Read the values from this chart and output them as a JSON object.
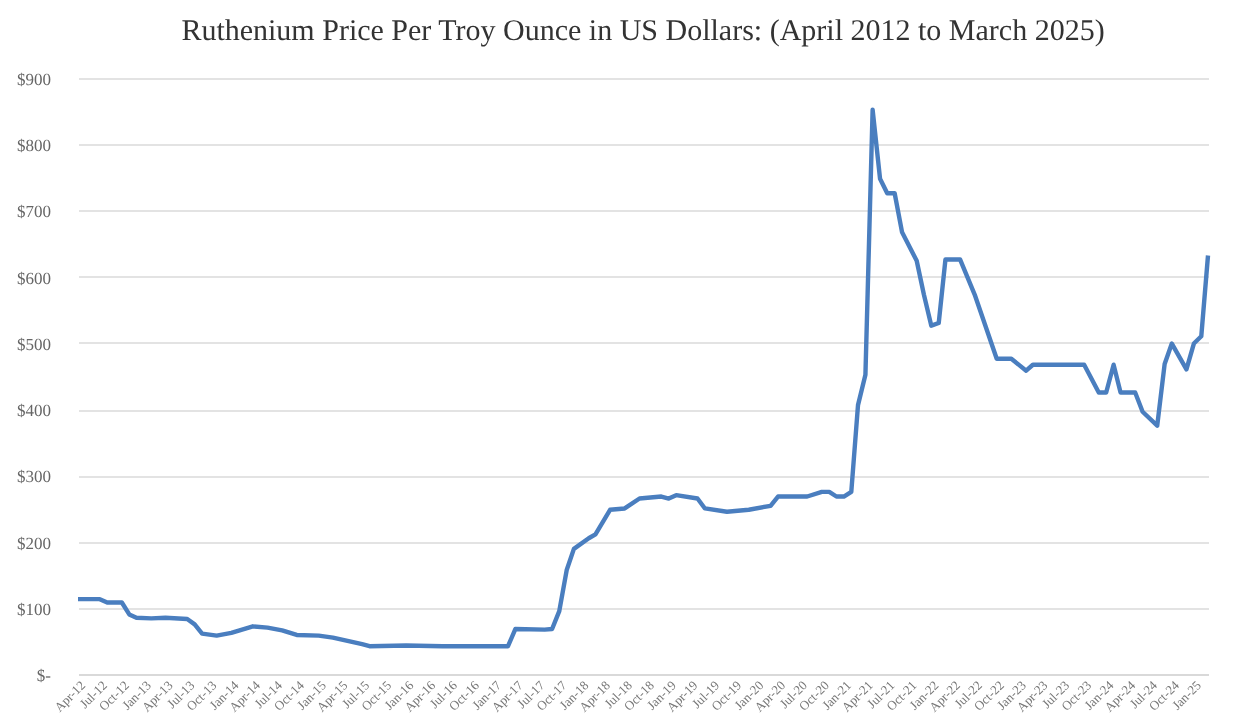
{
  "chart_data": {
    "type": "line",
    "title": "Ruthenium Price Per Troy Ounce in US Dollars: (April 2012 to March 2025)",
    "series": [
      {
        "color": "#4a7ebf",
        "x": [
          "2012-04",
          "2012-07",
          "2012-08",
          "2012-10",
          "2012-11",
          "2012-12",
          "2013-02",
          "2013-04",
          "2013-07",
          "2013-08",
          "2013-09",
          "2013-11",
          "2014-01",
          "2014-04",
          "2014-06",
          "2014-08",
          "2014-10",
          "2015-01",
          "2015-03",
          "2015-05",
          "2015-07",
          "2015-08",
          "2016-01",
          "2016-06",
          "2016-11",
          "2017-03",
          "2017-04",
          "2017-08",
          "2017-09",
          "2017-10",
          "2017-11",
          "2017-12",
          "2018-02",
          "2018-03",
          "2018-05",
          "2018-07",
          "2018-09",
          "2018-12",
          "2019-01",
          "2019-02",
          "2019-05",
          "2019-06",
          "2019-09",
          "2019-12",
          "2020-03",
          "2020-04",
          "2020-08",
          "2020-10",
          "2020-11",
          "2020-12",
          "2021-01",
          "2021-02",
          "2021-03",
          "2021-04",
          "2021-05",
          "2021-06",
          "2021-07",
          "2021-08",
          "2021-09",
          "2021-11",
          "2021-12",
          "2022-01",
          "2022-02",
          "2022-03",
          "2022-05",
          "2022-07",
          "2022-10",
          "2022-12",
          "2023-02",
          "2023-03",
          "2023-10",
          "2023-12",
          "2024-01",
          "2024-02",
          "2024-03",
          "2024-05",
          "2024-06",
          "2024-08",
          "2024-09",
          "2024-10",
          "2024-12",
          "2025-01",
          "2025-02",
          "2025-03"
        ],
        "values": [
          113,
          113,
          108,
          108,
          90,
          85,
          84,
          85,
          83,
          75,
          61,
          58,
          62,
          72,
          70,
          66,
          59,
          58,
          55,
          50,
          45,
          42,
          43,
          42,
          42,
          42,
          68,
          67,
          68,
          95,
          157,
          189,
          205,
          211,
          248,
          250,
          265,
          268,
          265,
          270,
          265,
          250,
          245,
          248,
          254,
          268,
          268,
          275,
          275,
          268,
          268,
          275,
          406,
          452,
          852,
          748,
          726,
          726,
          667,
          624,
          573,
          526,
          530,
          626,
          626,
          573,
          476,
          476,
          458,
          467,
          467,
          425,
          425,
          467,
          425,
          425,
          396,
          375,
          468,
          499,
          460,
          499,
          510,
          632
        ]
      }
    ],
    "xlim": [
      "2012-04",
      "2025-03"
    ],
    "xticks": [
      {
        "value": "2012-04",
        "label": "Apr-12"
      },
      {
        "value": "2012-07",
        "label": "Jul-12"
      },
      {
        "value": "2012-10",
        "label": "Oct-12"
      },
      {
        "value": "2013-01",
        "label": "Jan-13"
      },
      {
        "value": "2013-04",
        "label": "Apr-13"
      },
      {
        "value": "2013-07",
        "label": "Jul-13"
      },
      {
        "value": "2013-10",
        "label": "Oct-13"
      },
      {
        "value": "2014-01",
        "label": "Jan-14"
      },
      {
        "value": "2014-04",
        "label": "Apr-14"
      },
      {
        "value": "2014-07",
        "label": "Jul-14"
      },
      {
        "value": "2014-10",
        "label": "Oct-14"
      },
      {
        "value": "2015-01",
        "label": "Jan-15"
      },
      {
        "value": "2015-04",
        "label": "Apr-15"
      },
      {
        "value": "2015-07",
        "label": "Jul-15"
      },
      {
        "value": "2015-10",
        "label": "Oct-15"
      },
      {
        "value": "2016-01",
        "label": "Jan-16"
      },
      {
        "value": "2016-04",
        "label": "Apr-16"
      },
      {
        "value": "2016-07",
        "label": "Jul-16"
      },
      {
        "value": "2016-10",
        "label": "Oct-16"
      },
      {
        "value": "2017-01",
        "label": "Jan-17"
      },
      {
        "value": "2017-04",
        "label": "Apr-17"
      },
      {
        "value": "2017-07",
        "label": "Jul-17"
      },
      {
        "value": "2017-10",
        "label": "Oct-17"
      },
      {
        "value": "2018-01",
        "label": "Jan-18"
      },
      {
        "value": "2018-04",
        "label": "Apr-18"
      },
      {
        "value": "2018-07",
        "label": "Jul-18"
      },
      {
        "value": "2018-10",
        "label": "Oct-18"
      },
      {
        "value": "2019-01",
        "label": "Jan-19"
      },
      {
        "value": "2019-04",
        "label": "Apr-19"
      },
      {
        "value": "2019-07",
        "label": "Jul-19"
      },
      {
        "value": "2019-10",
        "label": "Oct-19"
      },
      {
        "value": "2020-01",
        "label": "Jan-20"
      },
      {
        "value": "2020-04",
        "label": "Apr-20"
      },
      {
        "value": "2020-07",
        "label": "Jul-20"
      },
      {
        "value": "2020-10",
        "label": "Oct-20"
      },
      {
        "value": "2021-01",
        "label": "Jan-21"
      },
      {
        "value": "2021-04",
        "label": "Apr-21"
      },
      {
        "value": "2021-07",
        "label": "Jul-21"
      },
      {
        "value": "2021-10",
        "label": "Oct-21"
      },
      {
        "value": "2022-01",
        "label": "Jan-22"
      },
      {
        "value": "2022-04",
        "label": "Apr-22"
      },
      {
        "value": "2022-07",
        "label": "Jul-22"
      },
      {
        "value": "2022-10",
        "label": "Oct-22"
      },
      {
        "value": "2023-01",
        "label": "Jan-23"
      },
      {
        "value": "2023-04",
        "label": "Apr-23"
      },
      {
        "value": "2023-07",
        "label": "Jul-23"
      },
      {
        "value": "2023-10",
        "label": "Oct-23"
      },
      {
        "value": "2024-01",
        "label": "Jan-24"
      },
      {
        "value": "2024-04",
        "label": "Apr-24"
      },
      {
        "value": "2024-07",
        "label": "Jul-24"
      },
      {
        "value": "2024-10",
        "label": "Oct-24"
      },
      {
        "value": "2025-01",
        "label": "Jan-25"
      }
    ],
    "ylim": [
      0,
      900
    ],
    "yticks": [
      {
        "value": 0,
        "label": "$-"
      },
      {
        "value": 100,
        "label": "$100"
      },
      {
        "value": 200,
        "label": "$200"
      },
      {
        "value": 300,
        "label": "$300"
      },
      {
        "value": 400,
        "label": "$400"
      },
      {
        "value": 500,
        "label": "$500"
      },
      {
        "value": 600,
        "label": "$600"
      },
      {
        "value": 700,
        "label": "$700"
      },
      {
        "value": 800,
        "label": "$800"
      },
      {
        "value": 900,
        "label": "$900"
      }
    ],
    "grid": "y",
    "marker": "none",
    "line_style": "solid"
  }
}
